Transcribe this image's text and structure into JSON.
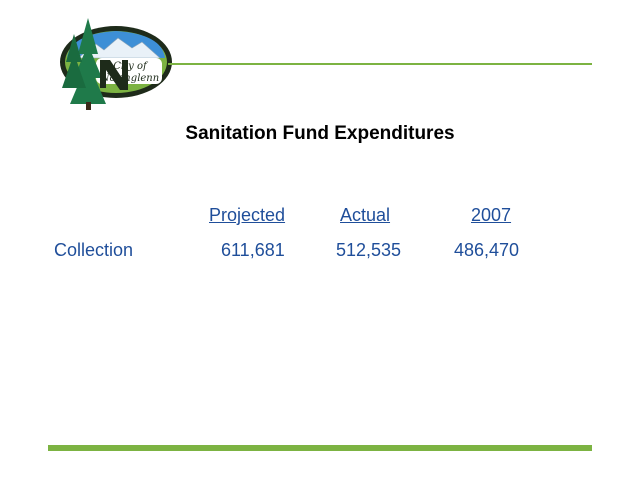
{
  "logo": {
    "text_line1": "City of",
    "text_line2": "Northglenn"
  },
  "slide": {
    "title": "Sanitation Fund Expenditures",
    "columns": [
      "Projected",
      "Actual",
      "2007"
    ],
    "rows": [
      {
        "label": "Collection",
        "values": [
          "611,681",
          "512,535",
          "486,470"
        ]
      }
    ]
  },
  "colors": {
    "accent_green": "#7cb342",
    "text_blue": "#1f4e9a",
    "title": "#000000"
  }
}
